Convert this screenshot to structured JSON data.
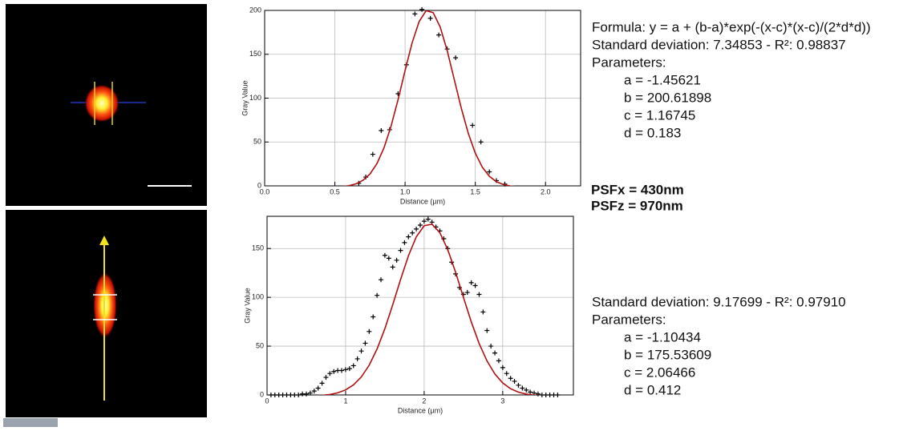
{
  "chart_data": [
    {
      "type": "scatter",
      "x_label": "Distance (µm)",
      "y_label": "Gray Value",
      "xlim": [
        0,
        2.25
      ],
      "ylim": [
        0,
        200
      ],
      "xticks": [
        {
          "value": 0,
          "label": "0.0"
        },
        0.5,
        {
          "value": 1,
          "label": "1.0"
        },
        1.5,
        {
          "value": 2,
          "label": "2.0"
        }
      ],
      "yticks": [
        0,
        50,
        100,
        150,
        200
      ],
      "grid": true,
      "series": [
        {
          "type": "scatter",
          "color": "#000000",
          "x": [
            0.67,
            0.72,
            0.77,
            0.83,
            0.89,
            0.95,
            1.01,
            1.07,
            1.12,
            1.18,
            1.24,
            1.3,
            1.36,
            1.48,
            1.54,
            1.6,
            1.65,
            1.71
          ],
          "values": [
            3,
            10,
            36,
            63,
            64,
            105,
            138,
            196,
            201,
            191,
            172,
            156,
            146,
            69,
            50,
            16,
            6,
            2
          ]
        },
        {
          "type": "line",
          "color": "#b01010",
          "x": [
            0.5,
            0.55,
            0.6,
            0.65,
            0.7,
            0.75,
            0.8,
            0.85,
            0.9,
            0.95,
            1.0,
            1.05,
            1.1,
            1.15,
            1.2,
            1.25,
            1.3,
            1.35,
            1.4,
            1.45,
            1.5,
            1.55,
            1.6,
            1.65,
            1.7,
            1.75,
            1.8
          ],
          "values": [
            -1.2,
            -0.78,
            0.19,
            2.25,
            6.28,
            13.52,
            25.46,
            43.4,
            67.97,
            98.26,
            131.46,
            162.97,
            187.32,
            199.68,
            197.46,
            181.09,
            154.02,
            121.44,
            88.71,
            59.93,
            37.32,
            21.28,
            10.93,
            4.8,
            1.47,
            -0.18,
            -0.94
          ]
        }
      ]
    },
    {
      "type": "scatter",
      "x_label": "Distance (µm)",
      "y_label": "Gray Value",
      "xlim": [
        0,
        3.9
      ],
      "ylim": [
        0,
        183
      ],
      "xticks": [
        0,
        1,
        2,
        3
      ],
      "yticks": [
        0,
        50,
        100,
        150
      ],
      "grid": true,
      "series": [
        {
          "type": "scatter",
          "color": "#000000",
          "x": [
            0.05,
            0.1,
            0.15,
            0.2,
            0.25,
            0.3,
            0.35,
            0.4,
            0.45,
            0.5,
            0.55,
            0.6,
            0.65,
            0.7,
            0.75,
            0.8,
            0.85,
            0.9,
            0.95,
            1.0,
            1.05,
            1.1,
            1.15,
            1.2,
            1.25,
            1.3,
            1.35,
            1.4,
            1.45,
            1.5,
            1.55,
            1.6,
            1.65,
            1.7,
            1.75,
            1.8,
            1.85,
            1.9,
            1.95,
            2.0,
            2.05,
            2.1,
            2.15,
            2.2,
            2.25,
            2.3,
            2.35,
            2.4,
            2.45,
            2.5,
            2.55,
            2.6,
            2.65,
            2.7,
            2.75,
            2.8,
            2.85,
            2.9,
            2.95,
            3.0,
            3.05,
            3.1,
            3.15,
            3.2,
            3.25,
            3.3,
            3.35,
            3.4,
            3.45,
            3.5,
            3.55,
            3.6,
            3.65,
            3.7
          ],
          "values": [
            0,
            0,
            0,
            0,
            0,
            0,
            0,
            0,
            1,
            1,
            2,
            4,
            7,
            12,
            18,
            22,
            24,
            25,
            25,
            26,
            27,
            30,
            37,
            45,
            53,
            65,
            80,
            102,
            118,
            143,
            140,
            131,
            138,
            148,
            156,
            162,
            166,
            170,
            174,
            178,
            180,
            177,
            172,
            168,
            160,
            150,
            136,
            124,
            110,
            103,
            105,
            115,
            112,
            103,
            85,
            66,
            50,
            43,
            35,
            28,
            22,
            17,
            14,
            10,
            7,
            5,
            3,
            2,
            1,
            0,
            0,
            0,
            0,
            0
          ]
        },
        {
          "type": "line",
          "color": "#b01010",
          "x": [
            0.3,
            0.4,
            0.5,
            0.6,
            0.7,
            0.8,
            0.9,
            1.0,
            1.1,
            1.2,
            1.3,
            1.4,
            1.5,
            1.6,
            1.7,
            1.8,
            1.9,
            2.0,
            2.1,
            2.2,
            2.3,
            2.4,
            2.5,
            2.6,
            2.7,
            2.8,
            2.9,
            3.0,
            3.1,
            3.2,
            3.3,
            3.4,
            3.5,
            3.6,
            3.7,
            3.8
          ],
          "values": [
            -1.09,
            -1.05,
            -0.97,
            -0.79,
            -0.37,
            0.49,
            2.14,
            5.16,
            10.29,
            18.42,
            30.44,
            46.96,
            67.95,
            92.41,
            118.27,
            142.59,
            161.97,
            173.36,
            174.88,
            166.26,
            148.95,
            125.74,
            99.97,
            74.83,
            52.7,
            34.83,
            21.51,
            12.32,
            6.41,
            2.86,
            0.87,
            -0.18,
            -0.7,
            -0.93,
            -1.04,
            -1.09
          ]
        }
      ]
    }
  ],
  "fit_results": [
    {
      "lines": [
        "Formula: y = a + (b-a)*exp(-(x-c)*(x-c)/(2*d*d))",
        "Standard deviation: 7.34853 - R²: 0.98837",
        "Parameters:"
      ],
      "parameters": [
        "a = -1.45621",
        "b = 200.61898",
        "c = 1.16745",
        "d = 0.183"
      ]
    },
    {
      "lines": [
        "Standard deviation: 9.17699 - R²: 0.97910",
        "Parameters:"
      ],
      "parameters": [
        "a = -1.10434",
        "b = 175.53609",
        "c = 2.06466",
        "d = 0.412"
      ]
    }
  ],
  "psf": [
    "PSFx = 430nm",
    "PSFz = 970nm"
  ]
}
